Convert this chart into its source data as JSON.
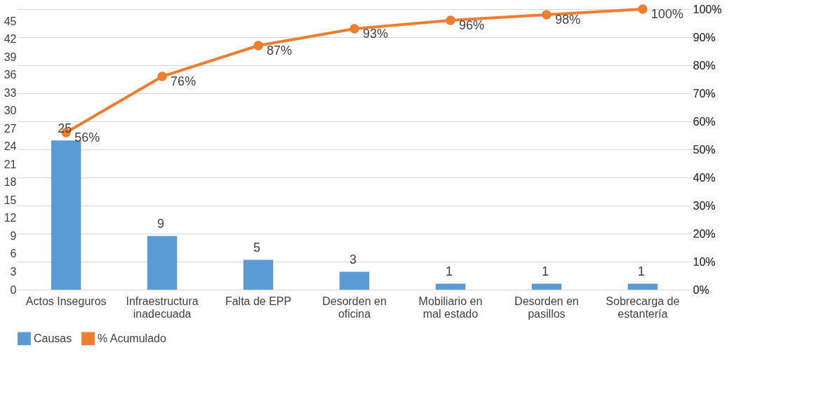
{
  "chart_data": {
    "type": "bar",
    "categories": [
      "Actos Inseguros",
      "Infraestructura\ninadecuada",
      "Falta de EPP",
      "Desorden en\noficina",
      "Mobiliario en\nmal estado",
      "Desorden en\npasillos",
      "Sobrecarga de\nestantería"
    ],
    "series": [
      {
        "name": "Causas",
        "color": "#5b9bd5",
        "values": [
          25,
          9,
          5,
          3,
          1,
          1,
          1
        ],
        "value_labels": [
          "25",
          "9",
          "5",
          "3",
          "1",
          "1",
          "1"
        ]
      },
      {
        "name": "% Acumulado",
        "type": "line",
        "axis": "y2",
        "color": "#ed7d31",
        "marker": "circle",
        "values": [
          56,
          76,
          87,
          93,
          96,
          98,
          100
        ],
        "value_labels": [
          "56%",
          "76%",
          "87%",
          "93%",
          "96%",
          "98%",
          "100%"
        ]
      }
    ],
    "ylim": [
      0,
      47
    ],
    "yticks": [
      0,
      3,
      6,
      9,
      12,
      15,
      18,
      21,
      24,
      27,
      30,
      33,
      36,
      39,
      42,
      45
    ],
    "y2lim": [
      0,
      100
    ],
    "y2ticks": [
      {
        "value": 0,
        "label": "0%"
      },
      {
        "value": 10,
        "label": "10%"
      },
      {
        "value": 20,
        "label": "20%"
      },
      {
        "value": 30,
        "label": "30%"
      },
      {
        "value": 40,
        "label": "40%"
      },
      {
        "value": 50,
        "label": "50%"
      },
      {
        "value": 60,
        "label": "60%"
      },
      {
        "value": 70,
        "label": "70%"
      },
      {
        "value": 80,
        "label": "80%"
      },
      {
        "value": 90,
        "label": "90%"
      },
      {
        "value": 100,
        "label": "100%"
      }
    ],
    "grid": "y",
    "legend": "bottom"
  }
}
